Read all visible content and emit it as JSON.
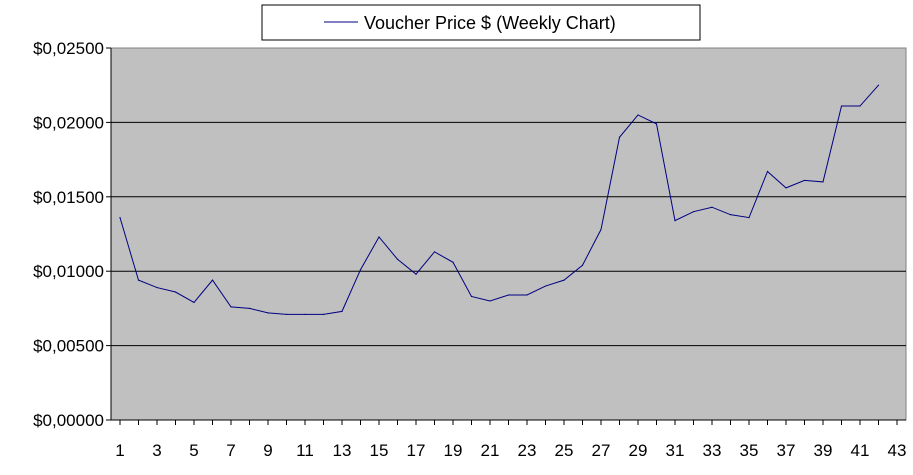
{
  "chart_data": {
    "type": "line",
    "title": "",
    "xlabel": "",
    "ylabel": "",
    "legend": {
      "position": "top-center",
      "box": true
    },
    "grid": {
      "horizontal": true,
      "vertical": false
    },
    "colors": {
      "plot_background": "#C0C0C0",
      "series": "#000080",
      "grid": "#000000"
    },
    "x_ticks": [
      "1",
      "3",
      "5",
      "7",
      "9",
      "11",
      "13",
      "15",
      "17",
      "19",
      "21",
      "23",
      "25",
      "27",
      "29",
      "31",
      "33",
      "35",
      "37",
      "39",
      "41",
      "43"
    ],
    "x_range": [
      1,
      43
    ],
    "y_ticks": [
      "$0,00000",
      "$0,00500",
      "$0,01000",
      "$0,01500",
      "$0,02000",
      "$0,02500"
    ],
    "ylim": [
      0,
      0.025
    ],
    "series": [
      {
        "name": "Voucher Price $ (Weekly Chart)",
        "x": [
          1,
          2,
          3,
          4,
          5,
          6,
          7,
          8,
          9,
          10,
          11,
          12,
          13,
          14,
          15,
          16,
          17,
          18,
          19,
          20,
          21,
          22,
          23,
          24,
          25,
          26,
          27,
          28,
          29,
          30,
          31,
          32,
          33,
          34,
          35,
          36,
          37,
          38,
          39,
          40,
          41,
          42
        ],
        "values": [
          0.0136,
          0.0094,
          0.0089,
          0.0086,
          0.0079,
          0.0094,
          0.0076,
          0.0075,
          0.0072,
          0.0071,
          0.0071,
          0.0071,
          0.0073,
          0.0101,
          0.0123,
          0.0108,
          0.0098,
          0.0113,
          0.0106,
          0.0083,
          0.008,
          0.0084,
          0.0084,
          0.009,
          0.0094,
          0.0104,
          0.0128,
          0.019,
          0.0205,
          0.0199,
          0.0134,
          0.014,
          0.0143,
          0.0138,
          0.0136,
          0.0167,
          0.0156,
          0.0161,
          0.016,
          0.0211,
          0.0211,
          0.0225
        ]
      }
    ]
  }
}
